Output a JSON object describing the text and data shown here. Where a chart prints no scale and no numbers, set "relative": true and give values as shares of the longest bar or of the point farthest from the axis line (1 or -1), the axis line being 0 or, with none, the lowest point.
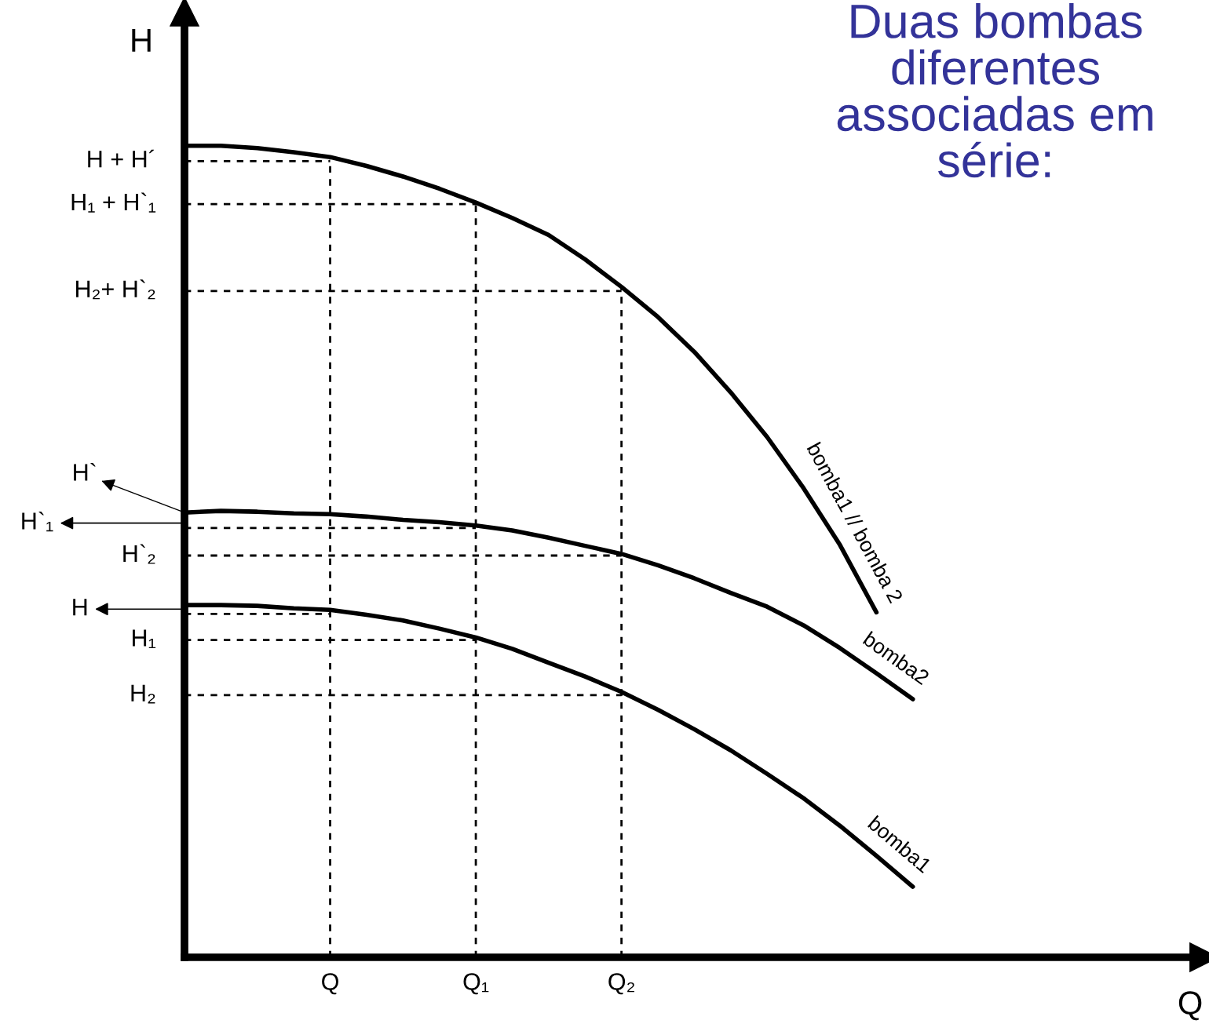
{
  "chart_data": {
    "type": "line",
    "relative": true,
    "title": "Duas bombas\ndiferentes\nassociadas em\nsérie:",
    "xlabel": "Q",
    "ylabel": "H",
    "legend": false,
    "categories": [
      null,
      null,
      null,
      null,
      "Q",
      null,
      null,
      null,
      "Q₁",
      null,
      null,
      null,
      "Q₂",
      null,
      null,
      null,
      null,
      null,
      null,
      null,
      null,
      null,
      null,
      null,
      null,
      null,
      null,
      null,
      null
    ],
    "series": [
      {
        "name": "bomba1 // bomba 2",
        "color": "#000000",
        "values": [
          1.0,
          1.0,
          0.997,
          0.992,
          0.986,
          0.975,
          0.962,
          0.947,
          0.93,
          0.911,
          0.89,
          0.86,
          0.826,
          0.789,
          0.746,
          0.696,
          0.641,
          0.578,
          0.508,
          0.425,
          null,
          null,
          null,
          null,
          null,
          null,
          null,
          null,
          null
        ]
      },
      {
        "name": "bomba2",
        "color": "#000000",
        "values": [
          0.548,
          0.55,
          0.549,
          0.547,
          0.546,
          0.543,
          0.539,
          0.536,
          0.532,
          0.526,
          0.517,
          0.507,
          0.497,
          0.483,
          0.467,
          0.449,
          0.432,
          0.409,
          0.381,
          0.35,
          0.318,
          null,
          null,
          null,
          null,
          null,
          null,
          null,
          null
        ]
      },
      {
        "name": "bomba1",
        "color": "#000000",
        "values": [
          0.434,
          0.434,
          0.433,
          0.43,
          0.428,
          0.422,
          0.415,
          0.405,
          0.394,
          0.38,
          0.363,
          0.346,
          0.327,
          0.305,
          0.281,
          0.255,
          0.226,
          0.196,
          0.162,
          0.125,
          0.087,
          null,
          null,
          null,
          null,
          null,
          null,
          null,
          null
        ]
      }
    ],
    "ref_lines": [
      {
        "axis": "x",
        "value": "Q",
        "color": "#000000",
        "line_style": "dashed"
      },
      {
        "axis": "x",
        "value": "Q₁",
        "color": "#000000",
        "line_style": "dashed"
      },
      {
        "axis": "x",
        "value": "Q₂",
        "color": "#000000",
        "line_style": "dashed"
      },
      {
        "axis": "y",
        "value": 0.981,
        "label": "H + H´",
        "color": "#000000",
        "line_style": "dashed"
      },
      {
        "axis": "y",
        "value": 0.928,
        "label": "H₁ + H`₁",
        "color": "#000000",
        "line_style": "dashed"
      },
      {
        "axis": "y",
        "value": 0.821,
        "label": "H₂+ H`₂",
        "color": "#000000",
        "line_style": "dashed"
      },
      {
        "axis": "y",
        "value": 0.529,
        "label": "H`₁",
        "color": "#000000",
        "line_style": "dashed"
      },
      {
        "axis": "y",
        "value": 0.495,
        "label": "H`₂",
        "color": "#000000",
        "line_style": "dashed"
      },
      {
        "axis": "y",
        "value": 0.423,
        "label": "H",
        "color": "#000000",
        "line_style": "dashed"
      },
      {
        "axis": "y",
        "value": 0.391,
        "label": "H₁",
        "color": "#000000",
        "line_style": "dashed"
      },
      {
        "axis": "y",
        "value": 0.323,
        "label": "H₂",
        "color": "#000000",
        "line_style": "dashed"
      }
    ],
    "annotations": [
      "H`"
    ]
  }
}
